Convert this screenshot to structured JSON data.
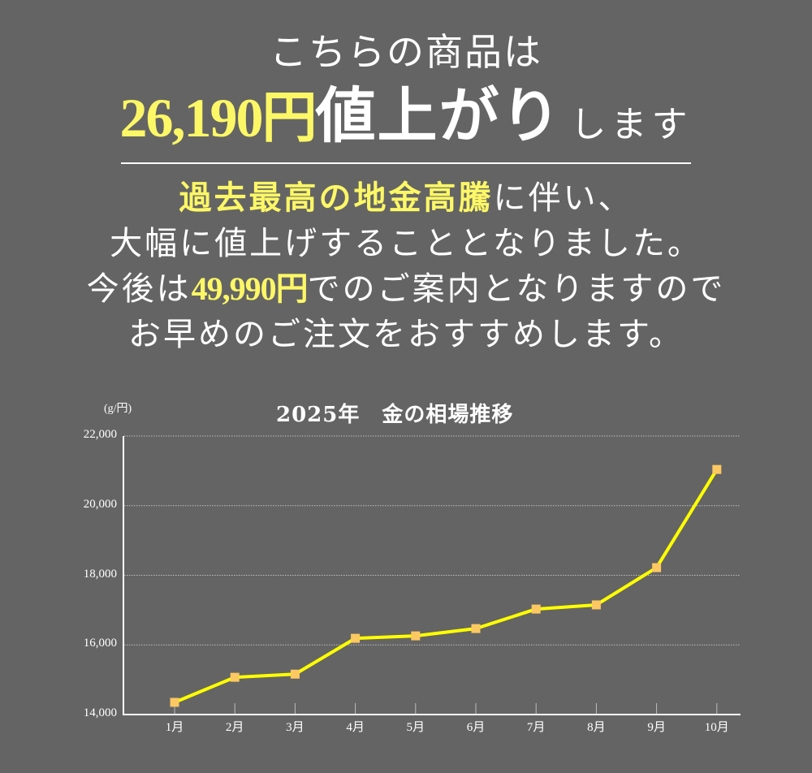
{
  "headline": {
    "line1": "こちらの商品は",
    "price_increase": "26,190円",
    "rise_text": "値上がり",
    "suffix": "します"
  },
  "message": {
    "line1_highlight": "過去最高の地金高騰",
    "line1_rest": "に伴い、",
    "line2": "大幅に値上げすることとなりました。",
    "line3_prefix": "今後は",
    "line3_price": "49,990円",
    "line3_suffix": "でのご案内となりますので",
    "line4": "お早めのご注文をおすすめします。"
  },
  "colors": {
    "background": "#646464",
    "highlight": "#fcf766",
    "line": "#ffff00",
    "marker": "#fcc862",
    "text": "#ffffff"
  },
  "chart_data": {
    "type": "line",
    "title": "2025年　金の相場推移",
    "unit_label": "(g/円)",
    "xlabel": "",
    "ylabel": "(g/円)",
    "categories": [
      "1月",
      "2月",
      "3月",
      "4月",
      "5月",
      "6月",
      "7月",
      "8月",
      "9月",
      "10月"
    ],
    "series": [
      {
        "name": "金の相場",
        "values": [
          14350,
          15070,
          15160,
          16190,
          16260,
          16470,
          17030,
          17150,
          18220,
          21040
        ]
      }
    ],
    "ylim": [
      14000,
      22000
    ],
    "yticks": [
      "14,000",
      "16,000",
      "18,000",
      "20,000",
      "22,000"
    ],
    "grid": true,
    "legend": "none"
  }
}
